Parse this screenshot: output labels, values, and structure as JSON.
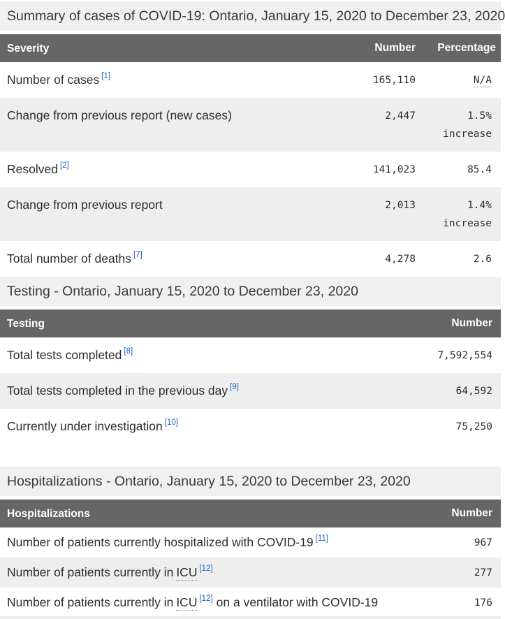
{
  "colors": {
    "table_header_bg": "#666666",
    "title_band_bg": "#f0f0f0",
    "row_stripe_bg": "#eeeeee",
    "link_blue": "#1a62c5",
    "header_text": "#ffffff",
    "body_text": "#2d2d2d"
  },
  "sections": {
    "summary": {
      "title": "Summary of cases of COVID-19: Ontario, January 15, 2020 to December 23, 2020",
      "columns": [
        "Severity",
        "Number",
        "Percentage"
      ],
      "rows": [
        {
          "label": "Number of cases",
          "ref": "[1]",
          "number": "165,110",
          "pct_abbr": "N/A"
        },
        {
          "label": "Change from previous report (new cases)",
          "number": "2,447",
          "pct": "1.5%",
          "pct_line2": "increase"
        },
        {
          "label": "Resolved",
          "ref": "[2]",
          "number": "141,023",
          "pct": "85.4"
        },
        {
          "label": "Change from previous report",
          "number": "2,013",
          "pct": "1.4%",
          "pct_line2": "increase"
        },
        {
          "label": "Total number of deaths",
          "ref": "[7]",
          "number": "4,278",
          "pct": "2.6"
        }
      ]
    },
    "testing": {
      "title": "Testing - Ontario, January 15, 2020 to December 23, 2020",
      "columns": [
        "Testing",
        "Number"
      ],
      "rows": [
        {
          "label": "Total tests completed",
          "ref": "[8]",
          "number": "7,592,554"
        },
        {
          "label": "Total tests completed in the previous day",
          "ref": "[9]",
          "number": "64,592"
        },
        {
          "label": "Currently under investigation",
          "ref": "[10]",
          "number": "75,250"
        }
      ]
    },
    "hospitalizations": {
      "title": "Hospitalizations - Ontario, January 15, 2020 to December 23, 2020",
      "columns": [
        "Hospitalizations",
        "Number"
      ],
      "rows": [
        {
          "label": "Number of patients currently hospitalized with COVID-19",
          "ref": "[11]",
          "number": "967"
        },
        {
          "label": "Number of patients currently in",
          "abbr": "ICU",
          "ref": "[12]",
          "number": "277"
        },
        {
          "label": "Number of patients currently in",
          "abbr": "ICU",
          "ref": "[12]",
          "label_after": "on a ventilator with COVID-19",
          "number": "176"
        }
      ]
    }
  }
}
